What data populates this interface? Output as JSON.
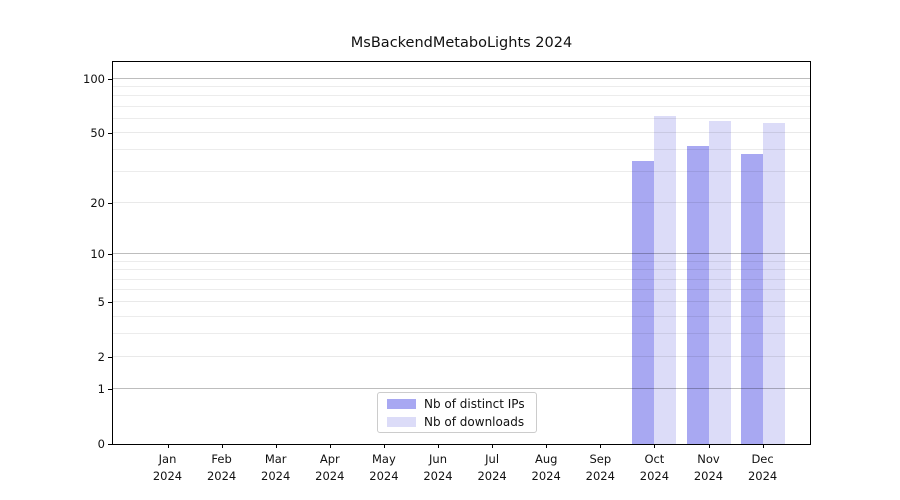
{
  "chart_data": {
    "type": "bar",
    "title": "MsBackendMetaboLights 2024",
    "categories": [
      "Jan",
      "Feb",
      "Mar",
      "Apr",
      "May",
      "Jun",
      "Jul",
      "Aug",
      "Sep",
      "Oct",
      "Nov",
      "Dec"
    ],
    "x_year_label": "2024",
    "series": [
      {
        "name": "Nb of distinct IPs",
        "color": "#a8a8f2",
        "values": [
          0,
          0,
          0,
          0,
          0,
          0,
          0,
          0,
          0,
          35,
          42,
          38
        ]
      },
      {
        "name": "Nb of downloads",
        "color": "#dcdcf8",
        "values": [
          0,
          0,
          0,
          0,
          0,
          0,
          0,
          0,
          0,
          62,
          58,
          57
        ]
      }
    ],
    "y_scale": "log1p",
    "ylim": [
      0,
      124
    ],
    "y_ticks": [
      0,
      1,
      2,
      5,
      10,
      20,
      50,
      100
    ],
    "y_decade_gridlines": [
      1,
      10,
      100
    ],
    "y_minor_gridlines": [
      3,
      4,
      6,
      7,
      8,
      9,
      30,
      40,
      60,
      70,
      80,
      90
    ],
    "grid": true,
    "legend_position": "lower center",
    "axis_color": "#000000",
    "background_color": "#ffffff"
  }
}
